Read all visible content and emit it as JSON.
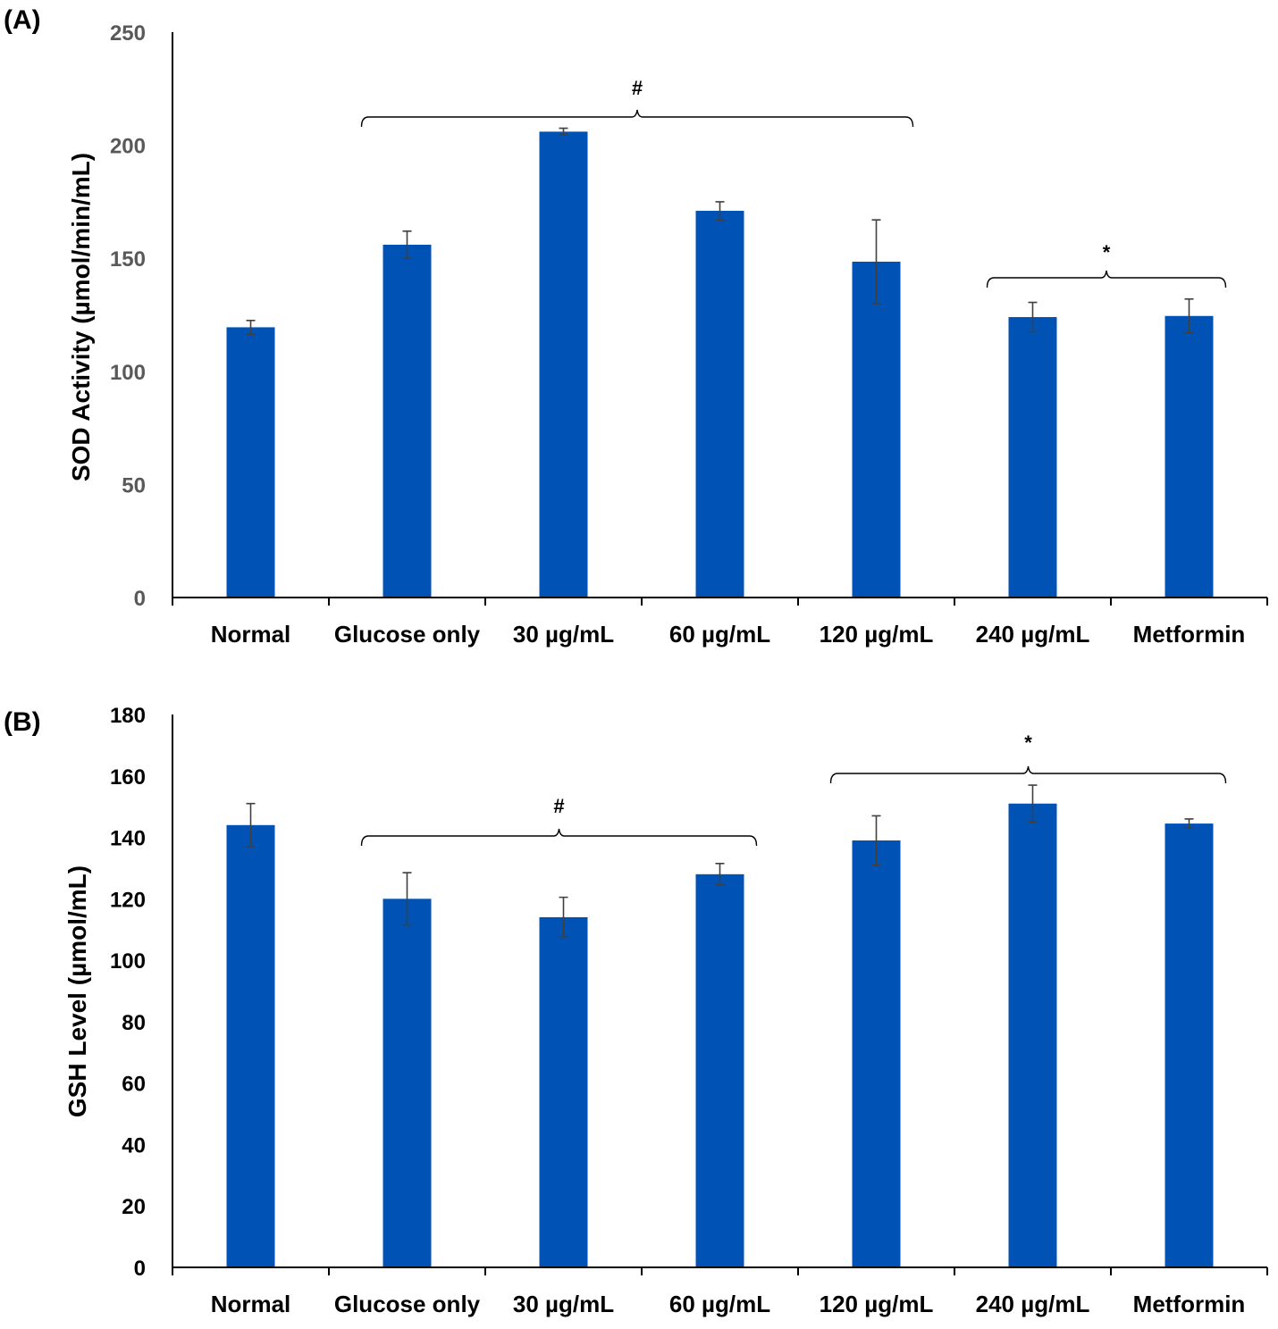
{
  "chart_data": [
    {
      "type": "bar",
      "panel_label": "(A)",
      "ylabel": "SOD Activity (µmol/min/mL)",
      "xlabel": "",
      "ylim": [
        0,
        250
      ],
      "yticks": [
        0,
        50,
        100,
        150,
        200,
        250
      ],
      "categories": [
        "Normal",
        "Glucose only",
        "30 µg/mL",
        "60 µg/mL",
        "120 µg/mL",
        "240 µg/mL",
        "Metformin"
      ],
      "values": [
        119.5,
        156,
        206,
        171,
        148.5,
        124,
        124.5
      ],
      "errors": [
        3,
        6,
        1.5,
        4,
        18.5,
        6.5,
        7.5
      ],
      "bar_color": "#0052b4",
      "tick_color": "#595959",
      "annotations": [
        {
          "symbol": "#",
          "from_category": 1,
          "to_category": 4
        },
        {
          "symbol": "*",
          "from_category": 5,
          "to_category": 6
        }
      ]
    },
    {
      "type": "bar",
      "panel_label": "(B)",
      "ylabel": "GSH Level (µmol/mL)",
      "xlabel": "",
      "ylim": [
        0,
        180
      ],
      "yticks": [
        0,
        20,
        40,
        60,
        80,
        100,
        120,
        140,
        160,
        180
      ],
      "categories": [
        "Normal",
        "Glucose only",
        "30 µg/mL",
        "60 µg/mL",
        "120 µg/mL",
        "240 µg/mL",
        "Metformin"
      ],
      "values": [
        144,
        120,
        114,
        128,
        139,
        151,
        144.5
      ],
      "errors": [
        7,
        8.5,
        6.5,
        3.5,
        8,
        6,
        1.5
      ],
      "bar_color": "#0052b4",
      "tick_color": "#000000",
      "annotations": [
        {
          "symbol": "#",
          "from_category": 1,
          "to_category": 3
        },
        {
          "symbol": "*",
          "from_category": 4,
          "to_category": 6
        }
      ]
    }
  ]
}
